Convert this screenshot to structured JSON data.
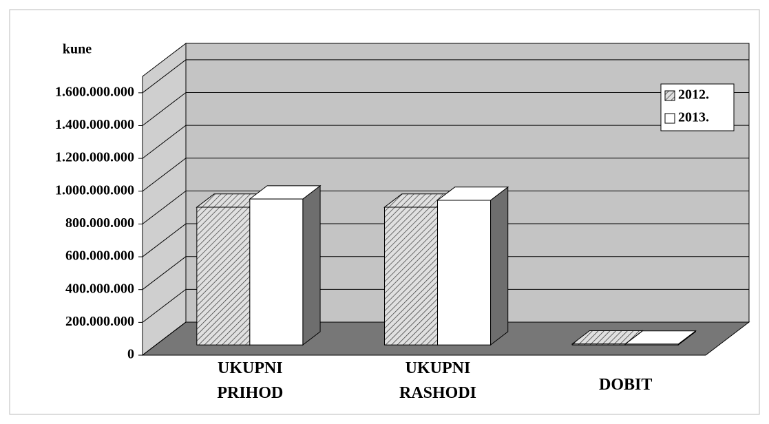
{
  "chart_data": {
    "type": "bar3d",
    "y_label": "kune",
    "categories": [
      "UKUPNI PRIHOD",
      "UKUPNI RASHODI",
      "DOBIT"
    ],
    "series": [
      {
        "name": "2012.",
        "color": "#e0e0e0",
        "pattern": "hatch",
        "values": [
          840000000,
          840000000,
          6000000
        ]
      },
      {
        "name": "2013.",
        "color": "#ffffff",
        "values": [
          890000000,
          882000000,
          5000000
        ]
      }
    ],
    "ylim": [
      0,
      1700000000
    ],
    "yticks": [
      0,
      {
        "value": 200000000,
        "label": "200.000.000"
      },
      {
        "value": 400000000,
        "label": "400.000.000"
      },
      {
        "value": 600000000,
        "label": "600.000.000"
      },
      {
        "value": 800000000,
        "label": "800.000.000"
      },
      {
        "value": 1000000000,
        "label": "1.000.000.000"
      },
      {
        "value": 1200000000,
        "label": "1.200.000.000"
      },
      {
        "value": 1400000000,
        "label": "1.400.000.000"
      },
      {
        "value": 1600000000,
        "label": "1.600.000.000"
      }
    ],
    "grid": true,
    "legend": "top-right"
  }
}
